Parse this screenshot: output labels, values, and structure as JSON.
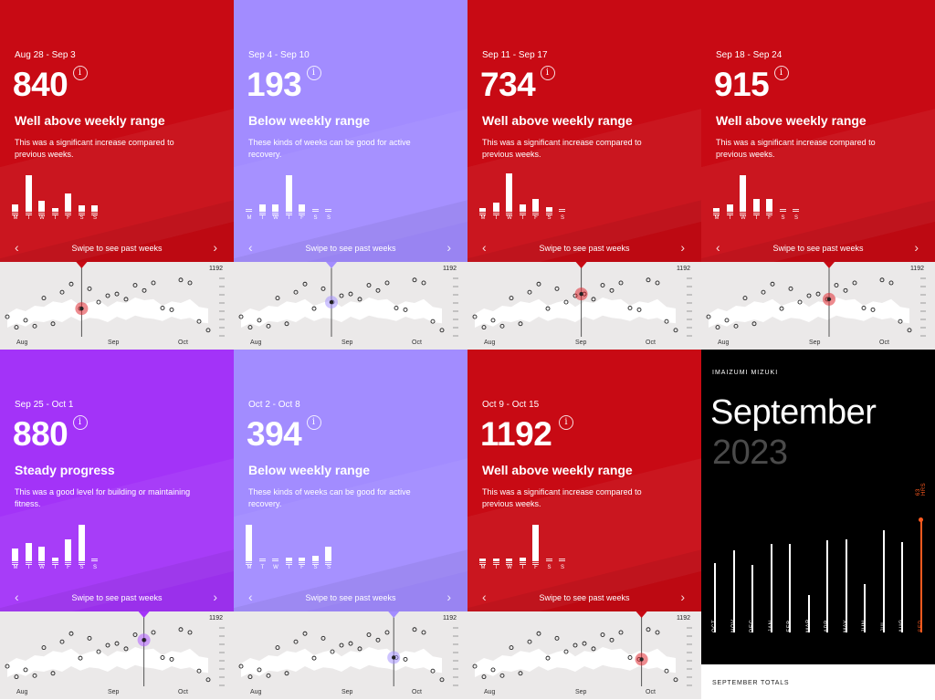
{
  "colors": {
    "red": "#c80a14",
    "lavender": "#a28cff",
    "purple": "#a333f8",
    "black": "#000000",
    "timeline_bg": "#ebe9e9",
    "accent_orange": "#ff5a1f"
  },
  "panels": [
    {
      "date": "Aug 28 - Sep 3",
      "value": "840",
      "status": "Well above weekly range",
      "desc": "This was a significant increase compared to previous weeks.",
      "color_key": "red",
      "bars": [
        8,
        40,
        12,
        4,
        20,
        7,
        7
      ],
      "marker_color": "#e02b33",
      "marker_frac": 0.37
    },
    {
      "date": "Sep 4 - Sep 10",
      "value": "193",
      "status": "Below weekly range",
      "desc": "These kinds of weeks can be good for active recovery.",
      "color_key": "lavender",
      "bars": [
        0,
        8,
        8,
        40,
        8,
        0,
        0
      ],
      "marker_color": "#a594ff",
      "marker_frac": 0.45
    },
    {
      "date": "Sep 11 - Sep 17",
      "value": "734",
      "status": "Well above weekly range",
      "desc": "This was a significant increase compared to previous weeks.",
      "color_key": "red",
      "bars": [
        4,
        10,
        42,
        8,
        14,
        5,
        0
      ],
      "marker_color": "#e02b33",
      "marker_frac": 0.53
    },
    {
      "date": "Sep 18 - Sep 24",
      "value": "915",
      "status": "Well above weekly range",
      "desc": "This was a significant increase compared to previous weeks.",
      "color_key": "red",
      "bars": [
        4,
        8,
        40,
        14,
        14,
        0,
        0
      ],
      "marker_color": "#e02b33",
      "marker_frac": 0.6
    },
    {
      "date": "Sep 25 - Oct 1",
      "value": "880",
      "status": "Steady progress",
      "desc": "This was a good level for building or maintaining fitness.",
      "color_key": "purple",
      "bars": [
        14,
        20,
        16,
        4,
        24,
        40,
        0
      ],
      "marker_color": "#b05cff",
      "marker_frac": 0.68
    },
    {
      "date": "Oct 2 - Oct 8",
      "value": "394",
      "status": "Below weekly range",
      "desc": "These kinds of weeks can be good for active recovery.",
      "color_key": "lavender",
      "bars": [
        40,
        0,
        0,
        4,
        4,
        6,
        16
      ],
      "marker_color": "#a594ff",
      "marker_frac": 0.76
    },
    {
      "date": "Oct 9 - Oct 15",
      "value": "1192",
      "status": "Well above weekly range",
      "desc": "This was a significant increase compared to previous weeks.",
      "color_key": "red",
      "bars": [
        3,
        3,
        3,
        4,
        40,
        0,
        0
      ],
      "marker_color": "#e02b33",
      "marker_frac": 0.83
    }
  ],
  "days": [
    "M",
    "T",
    "W",
    "T",
    "F",
    "S",
    "S"
  ],
  "swipe_text": "Swipe to see past weeks",
  "nav_prev": "‹",
  "nav_next": "›",
  "info_glyph": "i",
  "timeline": {
    "max_label": "1192",
    "months": [
      "Aug",
      "Sep",
      "Oct"
    ],
    "points": [
      0.28,
      0.1,
      0.22,
      0.12,
      0.6,
      0.16,
      0.7,
      0.84,
      0.42,
      0.76,
      0.53,
      0.64,
      0.67,
      0.58,
      0.82,
      0.73,
      0.86,
      0.43,
      0.4,
      0.91,
      0.86,
      0.2,
      0.05
    ]
  },
  "summary": {
    "owner": "IMAIZUMI MIZUKI",
    "month": "September",
    "year": "2023",
    "hours_label": "63 HRS",
    "footer": "SEPTEMBER TOTALS",
    "months": [
      "OCT",
      "NOV",
      "DEC",
      "JAN",
      "FEB",
      "MAR",
      "APR",
      "MAY",
      "JUN",
      "JUL",
      "AUG",
      "SEP"
    ],
    "values": [
      0.54,
      0.64,
      0.53,
      0.69,
      0.69,
      0.29,
      0.72,
      0.73,
      0.38,
      0.8,
      0.71,
      0.88
    ]
  }
}
